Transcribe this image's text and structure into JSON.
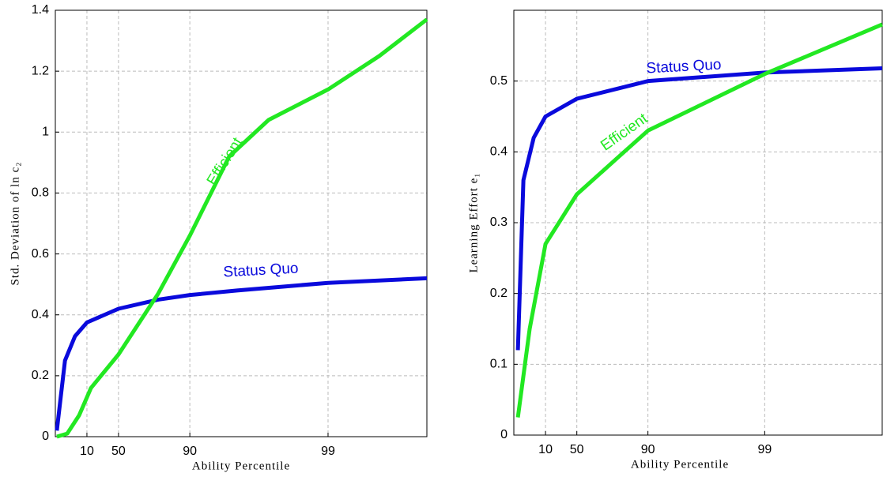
{
  "chart_data": [
    {
      "type": "line",
      "y_label": "Std. Deviation of ln c₂",
      "x_label": "Ability Percentile",
      "xlim": [
        0,
        1
      ],
      "ylim": [
        0,
        1.4
      ],
      "xticks": [
        {
          "value": 0.085,
          "label": "10"
        },
        {
          "value": 0.17,
          "label": "50"
        },
        {
          "value": 0.362,
          "label": "90"
        },
        {
          "value": 0.734,
          "label": "99"
        }
      ],
      "yticks": [
        0,
        0.2,
        0.4,
        0.6,
        0.8,
        1,
        1.2,
        1.4
      ],
      "grid": true,
      "series": [
        {
          "name": "Status Quo",
          "color": "#0a0adc",
          "x": [
            0.004,
            0.026,
            0.053,
            0.085,
            0.17,
            0.277,
            0.362,
            0.489,
            0.734,
            1.0
          ],
          "values": [
            0.02,
            0.25,
            0.33,
            0.375,
            0.42,
            0.45,
            0.465,
            0.48,
            0.505,
            0.52
          ]
        },
        {
          "name": "Efficient",
          "color": "#22e822",
          "x": [
            0.004,
            0.032,
            0.064,
            0.096,
            0.17,
            0.277,
            0.362,
            0.468,
            0.574,
            0.734,
            0.872,
            1.0
          ],
          "values": [
            0,
            0.01,
            0.07,
            0.16,
            0.27,
            0.47,
            0.66,
            0.92,
            1.04,
            1.14,
            1.25,
            1.37
          ]
        }
      ]
    },
    {
      "type": "line",
      "y_label": "Learning Effort e₁",
      "x_label": "Ability Percentile",
      "xlim": [
        0,
        1
      ],
      "ylim": [
        0,
        0.6
      ],
      "xticks": [
        {
          "value": 0.086,
          "label": "10"
        },
        {
          "value": 0.171,
          "label": "50"
        },
        {
          "value": 0.364,
          "label": "90"
        },
        {
          "value": 0.681,
          "label": "99"
        }
      ],
      "yticks": [
        0,
        0.1,
        0.2,
        0.3,
        0.4,
        0.5
      ],
      "grid": true,
      "series": [
        {
          "name": "Status Quo",
          "color": "#0a0adc",
          "x": [
            0.011,
            0.026,
            0.054,
            0.086,
            0.171,
            0.364,
            0.681,
            1.0
          ],
          "values": [
            0.12,
            0.36,
            0.42,
            0.45,
            0.475,
            0.5,
            0.512,
            0.518
          ]
        },
        {
          "name": "Efficient",
          "color": "#22e822",
          "x": [
            0.011,
            0.043,
            0.086,
            0.171,
            0.278,
            0.364,
            0.681,
            1.0
          ],
          "values": [
            0.025,
            0.15,
            0.27,
            0.34,
            0.39,
            0.43,
            0.51,
            0.58
          ]
        }
      ]
    }
  ]
}
